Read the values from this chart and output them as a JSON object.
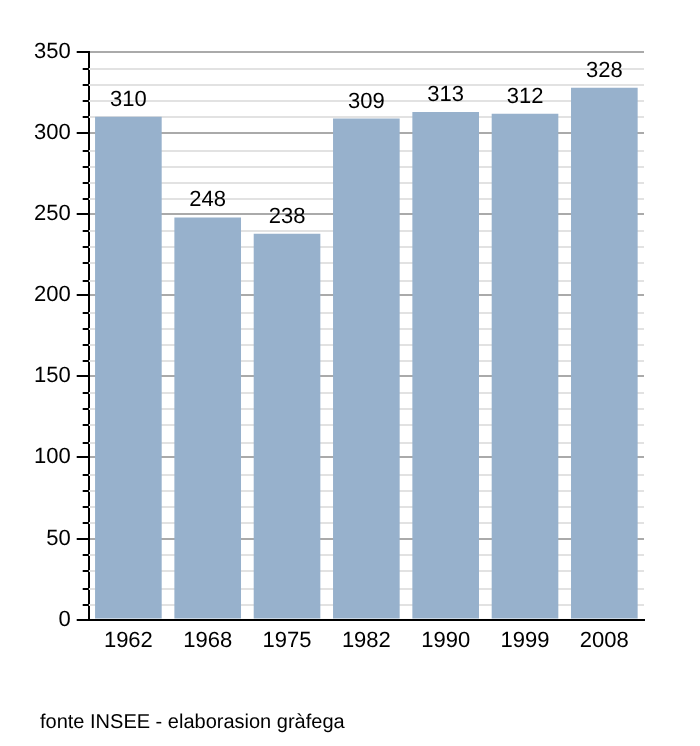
{
  "chart_data": {
    "type": "bar",
    "categories": [
      "1962",
      "1968",
      "1975",
      "1982",
      "1990",
      "1999",
      "2008"
    ],
    "values": [
      310,
      248,
      238,
      309,
      313,
      312,
      328
    ],
    "color": "#97b1cc",
    "ylim": [
      0,
      350
    ],
    "yticks": [
      0,
      50,
      100,
      150,
      200,
      250,
      300,
      350
    ],
    "grid": "y",
    "data_labels": true,
    "annotations": [
      "fonte INSEE - elaborasion gràfega"
    ]
  }
}
